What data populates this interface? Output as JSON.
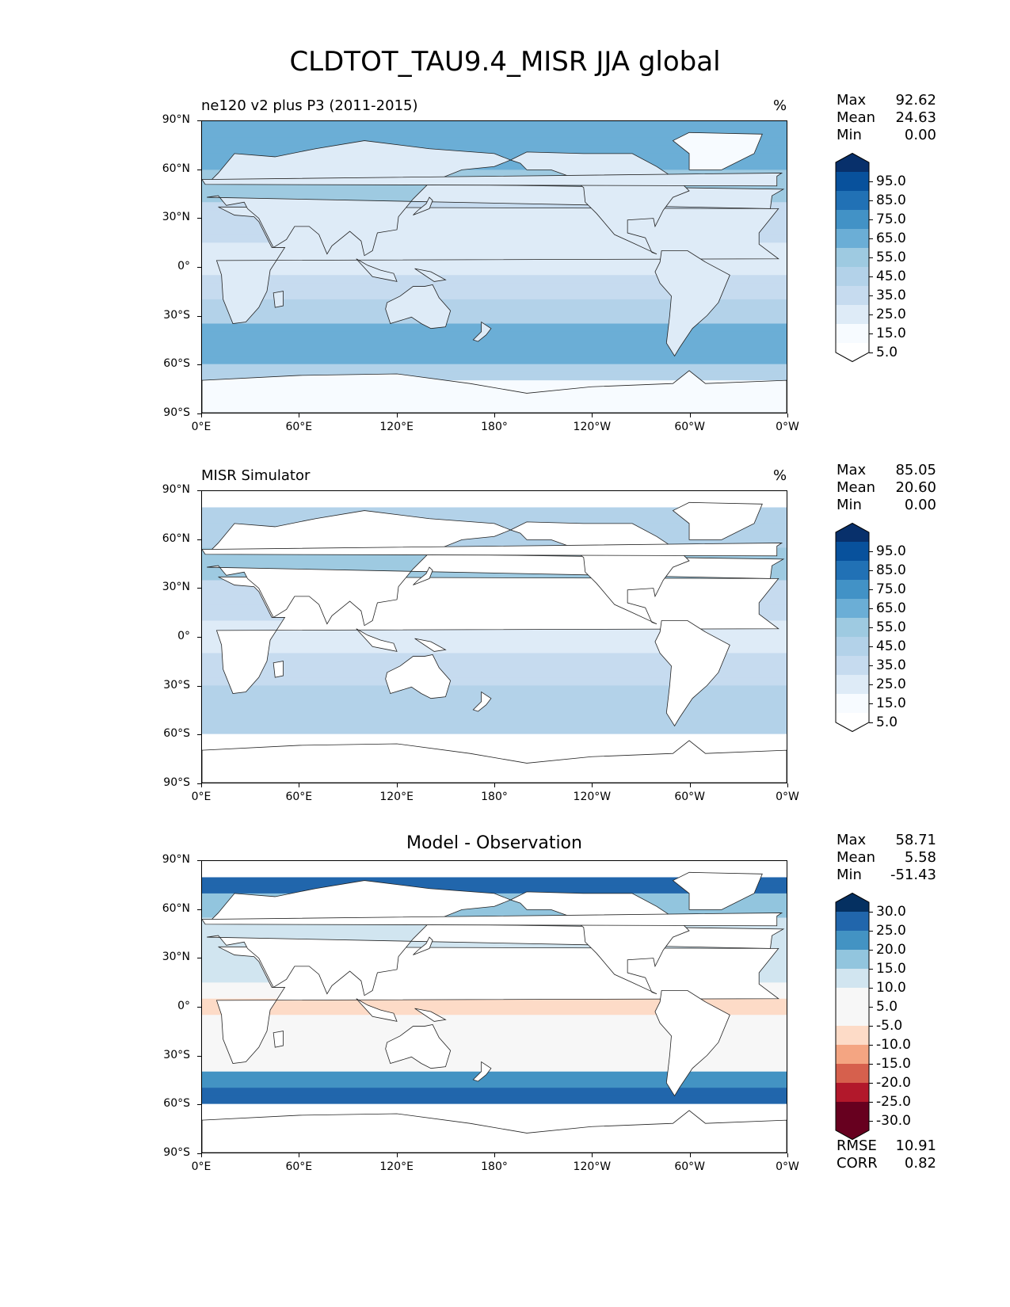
{
  "figure": {
    "title": "CLDTOT_TAU9.4_MISR JJA global"
  },
  "axes": {
    "lat_ticks": [
      "90°N",
      "60°N",
      "30°N",
      "0°",
      "30°S",
      "60°S",
      "90°S"
    ],
    "lon_ticks": [
      "0°E",
      "60°E",
      "120°E",
      "180°",
      "120°W",
      "60°W",
      "0°W"
    ]
  },
  "panels": [
    {
      "title": "ne120 v2 plus P3 (2011-2015)",
      "units": "%",
      "stats": {
        "max_label": "Max",
        "max": "92.62",
        "mean_label": "Mean",
        "mean": "24.63",
        "min_label": "Min",
        "min": "0.00"
      },
      "colorbar_labels": [
        "95.0",
        "85.0",
        "75.0",
        "65.0",
        "55.0",
        "45.0",
        "35.0",
        "25.0",
        "15.0",
        "5.0"
      ]
    },
    {
      "title": "MISR Simulator",
      "units": "%",
      "stats": {
        "max_label": "Max",
        "max": "85.05",
        "mean_label": "Mean",
        "mean": "20.60",
        "min_label": "Min",
        "min": "0.00"
      },
      "colorbar_labels": [
        "95.0",
        "85.0",
        "75.0",
        "65.0",
        "55.0",
        "45.0",
        "35.0",
        "25.0",
        "15.0",
        "5.0"
      ]
    },
    {
      "title": "Model - Observation",
      "units": "",
      "stats": {
        "max_label": "Max",
        "max": "58.71",
        "mean_label": "Mean",
        "mean": "5.58",
        "min_label": "Min",
        "min": "-51.43"
      },
      "colorbar_labels": [
        "30.0",
        "25.0",
        "20.0",
        "15.0",
        "10.0",
        "5.0",
        "-5.0",
        "-10.0",
        "-15.0",
        "-20.0",
        "-25.0",
        "-30.0"
      ],
      "rmse_label": "RMSE",
      "rmse": "10.91",
      "corr_label": "CORR",
      "corr": "0.82"
    }
  ],
  "colors": {
    "blues": [
      "#f7fbff",
      "#deebf7",
      "#c6dbef",
      "#b3d2e9",
      "#9ecae1",
      "#6baed6",
      "#4292c6",
      "#2171b5",
      "#08519c",
      "#08306b"
    ],
    "diverging": [
      "#67001f",
      "#b2182b",
      "#d6604d",
      "#f4a582",
      "#fddbc7",
      "#f7f7f7",
      "#d1e5f0",
      "#92c5de",
      "#4393c3",
      "#2166ac",
      "#053061"
    ]
  }
}
